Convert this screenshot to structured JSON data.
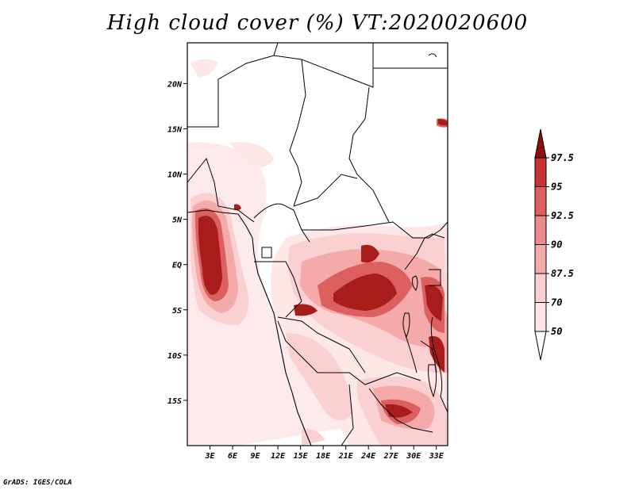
{
  "title": "High cloud cover (%) VT:2020020600",
  "credit": "GrADS: IGES/COLA",
  "map": {
    "lon_range": [
      0,
      34.5
    ],
    "lat_range": [
      -20,
      24.5
    ],
    "lat_labels": [
      "20N",
      "15N",
      "10N",
      "5N",
      "EQ",
      "5S",
      "10S",
      "15S"
    ],
    "lat_values": [
      20,
      15,
      10,
      5,
      0,
      -5,
      -10,
      -15
    ],
    "lon_labels": [
      "3E",
      "6E",
      "9E",
      "12E",
      "15E",
      "18E",
      "21E",
      "24E",
      "27E",
      "30E",
      "33E"
    ],
    "lon_values": [
      3,
      6,
      9,
      12,
      15,
      18,
      21,
      24,
      27,
      30,
      33
    ]
  },
  "colorbar": {
    "labels": [
      "97.5",
      "95",
      "92.5",
      "90",
      "87.5",
      "70",
      "50"
    ],
    "colors": [
      "#fde7e7",
      "#fbd0d0",
      "#f5aaaa",
      "#eb8a8a",
      "#dd6060",
      "#c83232",
      "#a81c1c",
      "#8a1010"
    ]
  },
  "colors": {
    "level_50": "#fde7e7",
    "level_70": "#fbd0d0",
    "level_87": "#f5aaaa",
    "level_90": "#eb8a8a",
    "level_92": "#dd6060",
    "level_95": "#c83232",
    "level_97": "#a81c1c"
  }
}
